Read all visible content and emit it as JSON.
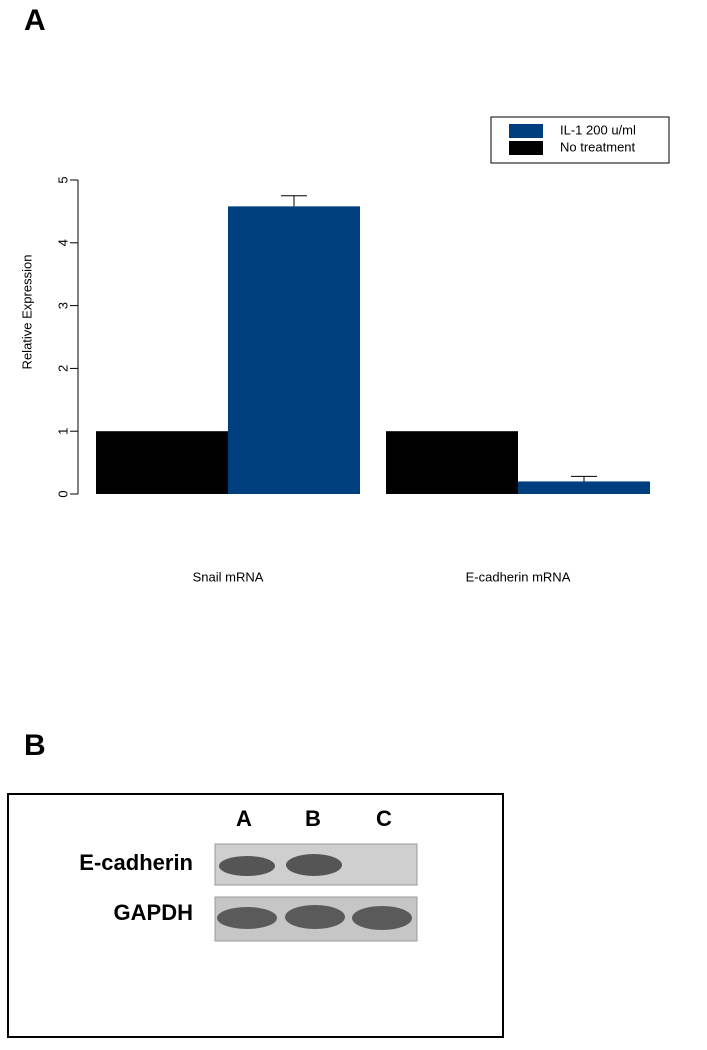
{
  "panels": {
    "a": "A",
    "b": "B"
  },
  "chart_data": {
    "type": "bar",
    "ylabel": "Relative Expression",
    "categories": [
      "Snail mRNA",
      "E-cadherin mRNA"
    ],
    "series": [
      {
        "name": "No treatment",
        "color": "#000000",
        "values": [
          1,
          1
        ]
      },
      {
        "name": "IL-1  200 u/ml",
        "color": "#003f7f",
        "values": [
          4.58,
          0.2
        ],
        "errors": [
          0.17,
          0.08
        ]
      }
    ],
    "ylim": [
      0,
      5
    ],
    "yticks": [
      0,
      1,
      2,
      3,
      4,
      5
    ],
    "legend": "top-right",
    "legend_order": [
      1,
      0
    ]
  },
  "blot": {
    "lanes": [
      "A",
      "B",
      "C"
    ],
    "rows": [
      "E-cadherin",
      "GAPDH"
    ]
  }
}
